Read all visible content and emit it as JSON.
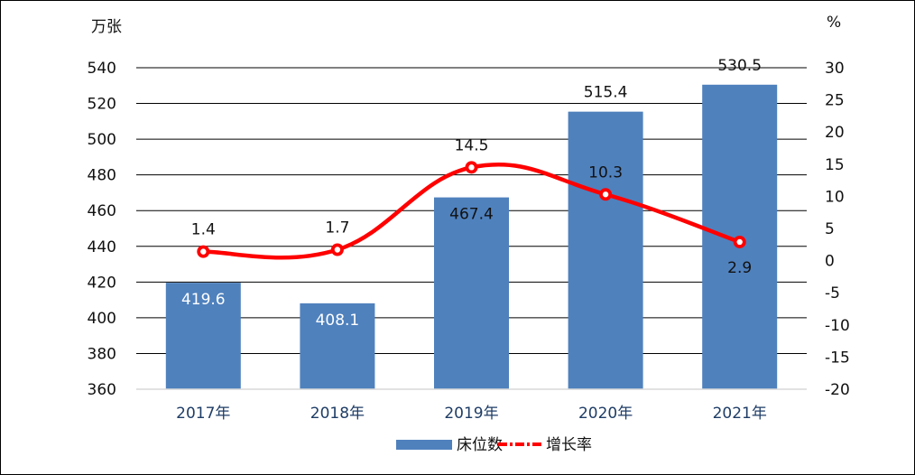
{
  "chart_data": {
    "type": "bar",
    "categories": [
      "2017年",
      "2018年",
      "2019年",
      "2020年",
      "2021年"
    ],
    "series": [
      {
        "name": "床位数",
        "type": "bar",
        "axis": "left",
        "color": "#4f81bd",
        "values": [
          419.6,
          408.1,
          467.4,
          515.4,
          530.5
        ],
        "labels": [
          "419.6",
          "408.1",
          "467.4",
          "515.4",
          "530.5"
        ]
      },
      {
        "name": "增长率",
        "type": "line",
        "axis": "right",
        "color": "#ff0000",
        "values": [
          1.4,
          1.7,
          14.5,
          10.3,
          2.9
        ],
        "labels": [
          "1.4",
          "1.7",
          "14.5",
          "10.3",
          "2.9"
        ]
      }
    ],
    "y_left": {
      "unit": "万张",
      "min": 360,
      "max": 540,
      "step": 20,
      "ticks": [
        "360",
        "380",
        "400",
        "420",
        "440",
        "460",
        "480",
        "500",
        "520",
        "540"
      ]
    },
    "y_right": {
      "unit": "%",
      "min": -20,
      "max": 30,
      "step": 5,
      "ticks": [
        "-20",
        "-15",
        "-10",
        "-5",
        "0",
        "5",
        "10",
        "15",
        "20",
        "25",
        "30"
      ]
    },
    "grid": true,
    "legend_position": "bottom"
  }
}
